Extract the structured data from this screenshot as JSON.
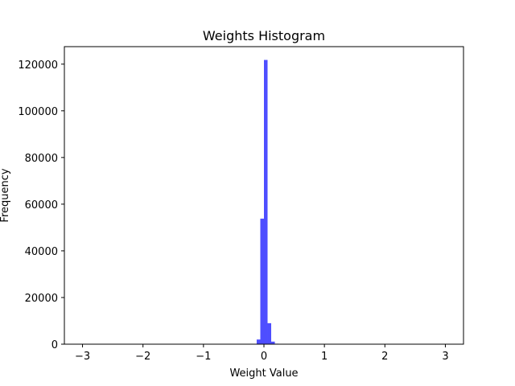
{
  "chart_data": {
    "type": "bar",
    "subtype": "histogram",
    "title": "Weights Histogram",
    "xlabel": "Weight Value",
    "ylabel": "Frequency",
    "xlim": [
      -3.3,
      3.3
    ],
    "ylim": [
      0,
      127500
    ],
    "x_ticks": [
      -3,
      -2,
      -1,
      0,
      1,
      2,
      3
    ],
    "x_tick_labels": [
      "−3",
      "−2",
      "−1",
      "0",
      "1",
      "2",
      "3"
    ],
    "y_ticks": [
      0,
      20000,
      40000,
      60000,
      80000,
      100000,
      120000
    ],
    "y_tick_labels": [
      "0",
      "20000",
      "40000",
      "60000",
      "80000",
      "100000",
      "120000"
    ],
    "bin_width": 0.06,
    "color": "#4444ff",
    "bins": [
      {
        "x0": -0.12,
        "x1": -0.06,
        "value": 2000
      },
      {
        "x0": -0.06,
        "x1": 0.0,
        "value": 53800
      },
      {
        "x0": 0.0,
        "x1": 0.06,
        "value": 121800
      },
      {
        "x0": 0.06,
        "x1": 0.12,
        "value": 9000
      },
      {
        "x0": 0.12,
        "x1": 0.18,
        "value": 1100
      },
      {
        "x0": 0.18,
        "x1": 0.24,
        "value": 200
      }
    ],
    "grid": false,
    "legend": false
  }
}
